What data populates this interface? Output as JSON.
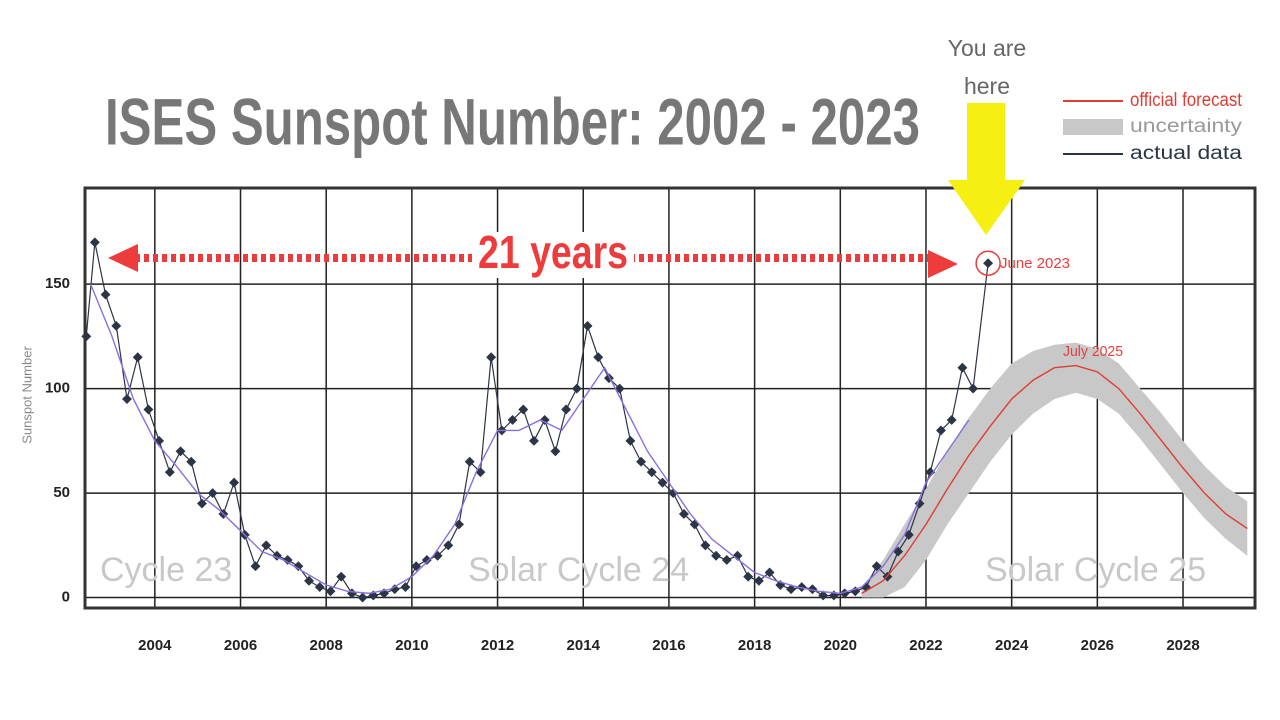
{
  "chart_data": {
    "type": "line",
    "title": "ISES Sunspot Number: 2002 - 2023",
    "y_label": "Sunspot Number",
    "xlim": [
      2002.37,
      2029.68
    ],
    "ylim": [
      -5,
      196
    ],
    "xticks": [
      2004,
      2006,
      2008,
      2010,
      2012,
      2014,
      2016,
      2018,
      2020,
      2022,
      2024,
      2026,
      2028
    ],
    "yticks": [
      0,
      50,
      100,
      150
    ],
    "grid": true,
    "legend": "top-right",
    "annotations": {
      "span": "21 years",
      "current": "June 2023",
      "peak": "July 2025",
      "you_are_here": [
        "You are",
        "here"
      ],
      "cycles": [
        "Cycle 23",
        "Solar Cycle 24",
        "Solar Cycle 25"
      ]
    },
    "series": [
      {
        "name": "actual data",
        "color": "#2b3545",
        "x": [
          2002.4,
          2002.6,
          2002.85,
          2003.1,
          2003.35,
          2003.6,
          2003.85,
          2004.1,
          2004.35,
          2004.6,
          2004.85,
          2005.1,
          2005.35,
          2005.6,
          2005.85,
          2006.1,
          2006.35,
          2006.6,
          2006.85,
          2007.1,
          2007.35,
          2007.6,
          2007.85,
          2008.1,
          2008.35,
          2008.6,
          2008.85,
          2009.1,
          2009.35,
          2009.6,
          2009.85,
          2010.1,
          2010.35,
          2010.6,
          2010.85,
          2011.1,
          2011.35,
          2011.6,
          2011.85,
          2012.1,
          2012.35,
          2012.6,
          2012.85,
          2013.1,
          2013.35,
          2013.6,
          2013.85,
          2014.1,
          2014.35,
          2014.6,
          2014.85,
          2015.1,
          2015.35,
          2015.6,
          2015.85,
          2016.1,
          2016.35,
          2016.6,
          2016.85,
          2017.1,
          2017.35,
          2017.6,
          2017.85,
          2018.1,
          2018.35,
          2018.6,
          2018.85,
          2019.1,
          2019.35,
          2019.6,
          2019.85,
          2020.1,
          2020.35,
          2020.6,
          2020.85,
          2021.1,
          2021.35,
          2021.6,
          2021.85,
          2022.1,
          2022.35,
          2022.6,
          2022.85,
          2023.1,
          2023.45
        ],
        "values": [
          125,
          170,
          145,
          130,
          95,
          115,
          90,
          75,
          60,
          70,
          65,
          45,
          50,
          40,
          55,
          30,
          15,
          25,
          20,
          18,
          15,
          8,
          5,
          3,
          10,
          2,
          0,
          1,
          2,
          4,
          5,
          15,
          18,
          20,
          25,
          35,
          65,
          60,
          115,
          80,
          85,
          90,
          75,
          85,
          70,
          90,
          100,
          130,
          115,
          105,
          100,
          75,
          65,
          60,
          55,
          50,
          40,
          35,
          25,
          20,
          18,
          20,
          10,
          8,
          12,
          6,
          4,
          5,
          4,
          1,
          1,
          2,
          3,
          5,
          15,
          10,
          22,
          30,
          45,
          60,
          80,
          85,
          110,
          100,
          160
        ]
      },
      {
        "color": "#8a6fe0",
        "x": [
          2002.5,
          2003,
          2003.5,
          2004,
          2004.5,
          2005,
          2005.5,
          2006,
          2006.5,
          2007,
          2007.5,
          2008,
          2008.5,
          2009,
          2009.5,
          2010,
          2010.5,
          2011,
          2011.5,
          2012,
          2012.5,
          2013,
          2013.5,
          2014,
          2014.5,
          2015,
          2015.5,
          2016,
          2016.5,
          2017,
          2017.5,
          2018,
          2018.5,
          2019,
          2019.5,
          2020,
          2020.5,
          2021,
          2021.5,
          2022,
          2022.5,
          2023
        ],
        "values": [
          150,
          125,
          95,
          75,
          63,
          50,
          42,
          32,
          22,
          18,
          12,
          6,
          3,
          2,
          4,
          10,
          20,
          35,
          60,
          80,
          80,
          85,
          80,
          95,
          110,
          90,
          70,
          55,
          40,
          28,
          20,
          12,
          8,
          5,
          3,
          2,
          5,
          15,
          30,
          55,
          70,
          85
        ]
      },
      {
        "name": "official forecast",
        "color": "#e03c32",
        "x": [
          2020.5,
          2021,
          2021.5,
          2022,
          2022.5,
          2023,
          2023.5,
          2024,
          2024.5,
          2025,
          2025.5,
          2026,
          2026.5,
          2027,
          2027.5,
          2028,
          2028.5,
          2029,
          2029.5
        ],
        "values": [
          2,
          8,
          20,
          35,
          52,
          68,
          82,
          95,
          104,
          110,
          111,
          108,
          100,
          88,
          75,
          62,
          50,
          40,
          33
        ]
      }
    ],
    "band": {
      "name": "uncertainty",
      "color": "#c8c8c8",
      "x": [
        2020.5,
        2021,
        2021.5,
        2022,
        2022.5,
        2023,
        2023.5,
        2024,
        2024.5,
        2025,
        2025.5,
        2026,
        2026.5,
        2027,
        2027.5,
        2028,
        2028.5,
        2029,
        2029.5
      ],
      "lower": [
        0,
        0,
        5,
        18,
        35,
        50,
        65,
        78,
        88,
        95,
        98,
        95,
        88,
        76,
        63,
        50,
        38,
        28,
        20
      ],
      "upper": [
        5,
        18,
        35,
        52,
        70,
        86,
        100,
        112,
        118,
        121,
        122,
        119,
        112,
        100,
        88,
        75,
        63,
        53,
        46
      ]
    }
  }
}
